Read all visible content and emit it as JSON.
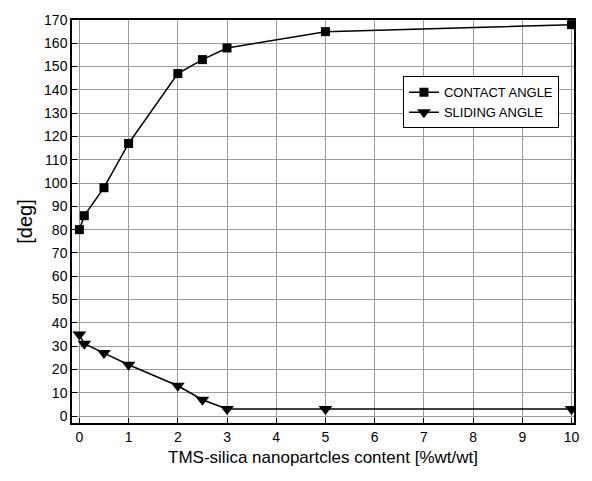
{
  "chart_data": {
    "type": "line",
    "x_label": "TMS-silica nanopartcles content [%wt/wt]",
    "y_label": "[deg]",
    "xlim": [
      -0.15,
      10.05
    ],
    "xticks": [
      0,
      1,
      2,
      3,
      4,
      5,
      6,
      7,
      8,
      9,
      10
    ],
    "ylim": [
      -3,
      170
    ],
    "yticks": [
      0,
      10,
      20,
      30,
      40,
      50,
      60,
      70,
      80,
      90,
      100,
      110,
      120,
      130,
      140,
      150,
      160,
      170
    ],
    "grid": true,
    "legend": "upper right",
    "series": [
      {
        "name": "CONTACT ANGLE",
        "color": "#000000",
        "marker": "square",
        "line_style": "solid",
        "x": [
          0,
          0.1,
          0.5,
          1,
          2,
          2.5,
          3,
          5,
          10
        ],
        "values": [
          80,
          86,
          98,
          117,
          147,
          153,
          158,
          165,
          168
        ]
      },
      {
        "name": "SLIDING ANGLE",
        "color": "#000000",
        "marker": "triangle-down",
        "line_style": "solid",
        "x": [
          0,
          0.1,
          0.5,
          1,
          2,
          2.5,
          3,
          5,
          10
        ],
        "values": [
          35,
          31,
          27,
          22,
          13,
          7,
          3,
          3,
          3
        ]
      }
    ]
  }
}
